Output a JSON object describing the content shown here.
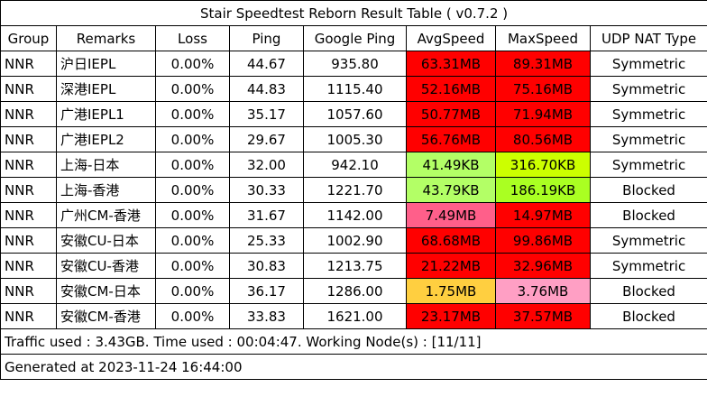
{
  "title": "Stair Speedtest Reborn Result Table ( v0.7.2 )",
  "headers": [
    "Group",
    "Remarks",
    "Loss",
    "Ping",
    "Google Ping",
    "AvgSpeed",
    "MaxSpeed",
    "UDP NAT Type"
  ],
  "rows": [
    {
      "group": "NNR",
      "remarks": "沪日IEPL",
      "loss": "0.00%",
      "ping": "44.67",
      "google_ping": "935.80",
      "avg_speed": "63.31MB",
      "avg_color": "#ff0000",
      "max_speed": "89.31MB",
      "max_color": "#ff0000",
      "nat": "Symmetric"
    },
    {
      "group": "NNR",
      "remarks": "深港IEPL",
      "loss": "0.00%",
      "ping": "44.83",
      "google_ping": "1115.40",
      "avg_speed": "52.16MB",
      "avg_color": "#ff0000",
      "max_speed": "75.16MB",
      "max_color": "#ff0000",
      "nat": "Symmetric"
    },
    {
      "group": "NNR",
      "remarks": "广港IEPL1",
      "loss": "0.00%",
      "ping": "35.17",
      "google_ping": "1057.60",
      "avg_speed": "50.77MB",
      "avg_color": "#ff0000",
      "max_speed": "71.94MB",
      "max_color": "#ff0000",
      "nat": "Symmetric"
    },
    {
      "group": "NNR",
      "remarks": "广港IEPL2",
      "loss": "0.00%",
      "ping": "29.67",
      "google_ping": "1005.30",
      "avg_speed": "56.76MB",
      "avg_color": "#ff0000",
      "max_speed": "80.56MB",
      "max_color": "#ff0000",
      "nat": "Symmetric"
    },
    {
      "group": "NNR",
      "remarks": "上海-日本",
      "loss": "0.00%",
      "ping": "32.00",
      "google_ping": "942.10",
      "avg_speed": "41.49KB",
      "avg_color": "#b3ff66",
      "max_speed": "316.70KB",
      "max_color": "#ccff00",
      "nat": "Symmetric"
    },
    {
      "group": "NNR",
      "remarks": "上海-香港",
      "loss": "0.00%",
      "ping": "30.33",
      "google_ping": "1221.70",
      "avg_speed": "43.79KB",
      "avg_color": "#b3ff66",
      "max_speed": "186.19KB",
      "max_color": "#aaff22",
      "nat": "Blocked"
    },
    {
      "group": "NNR",
      "remarks": "广州CM-香港",
      "loss": "0.00%",
      "ping": "31.67",
      "google_ping": "1142.00",
      "avg_speed": "7.49MB",
      "avg_color": "#ff5f8a",
      "max_speed": "14.97MB",
      "max_color": "#ff0000",
      "nat": "Blocked"
    },
    {
      "group": "NNR",
      "remarks": "安徽CU-日本",
      "loss": "0.00%",
      "ping": "25.33",
      "google_ping": "1002.90",
      "avg_speed": "68.68MB",
      "avg_color": "#ff0000",
      "max_speed": "99.86MB",
      "max_color": "#ff0000",
      "nat": "Symmetric"
    },
    {
      "group": "NNR",
      "remarks": "安徽CU-香港",
      "loss": "0.00%",
      "ping": "30.83",
      "google_ping": "1213.75",
      "avg_speed": "21.22MB",
      "avg_color": "#ff0000",
      "max_speed": "32.96MB",
      "max_color": "#ff0000",
      "nat": "Symmetric"
    },
    {
      "group": "NNR",
      "remarks": "安徽CM-日本",
      "loss": "0.00%",
      "ping": "36.17",
      "google_ping": "1286.00",
      "avg_speed": "1.75MB",
      "avg_color": "#ffcf40",
      "max_speed": "3.76MB",
      "max_color": "#ff9fc4",
      "nat": "Blocked"
    },
    {
      "group": "NNR",
      "remarks": "安徽CM-香港",
      "loss": "0.00%",
      "ping": "33.83",
      "google_ping": "1621.00",
      "avg_speed": "23.17MB",
      "avg_color": "#ff0000",
      "max_speed": "37.57MB",
      "max_color": "#ff0000",
      "nat": "Blocked"
    }
  ],
  "footer": {
    "traffic": "Traffic used : 3.43GB. Time used : 00:04:47. Working Node(s) : [11/11]",
    "generated": "Generated at 2023-11-24 16:44:00"
  }
}
